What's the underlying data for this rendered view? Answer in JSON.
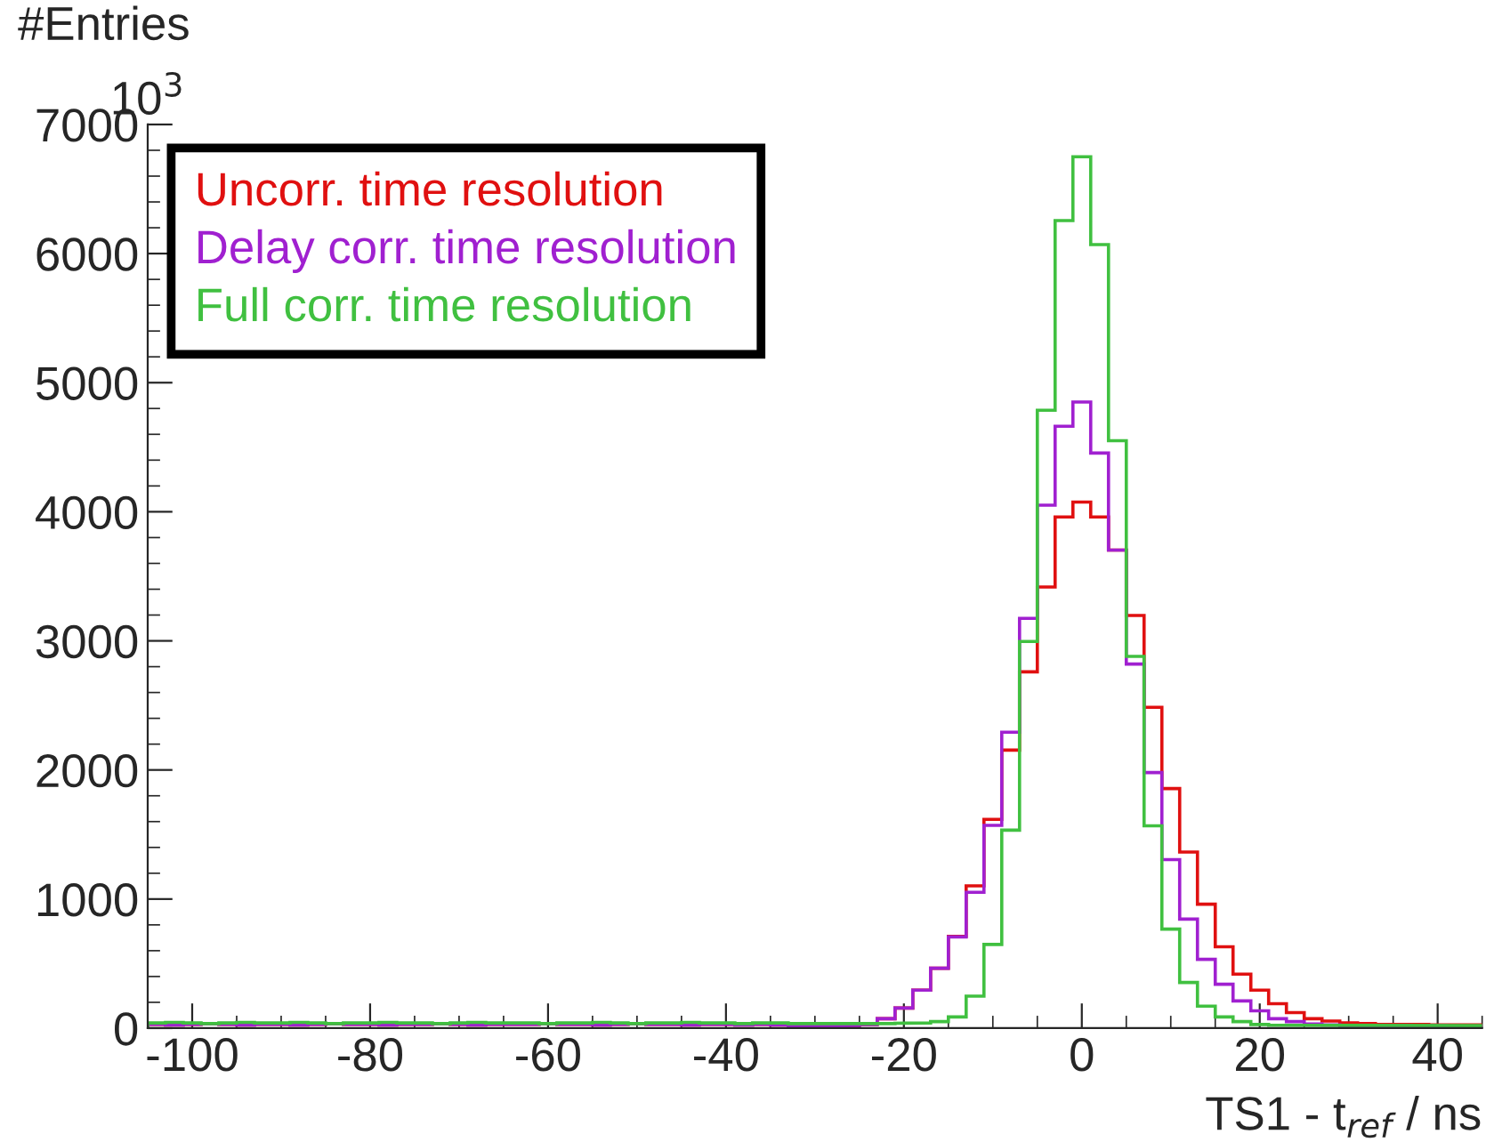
{
  "chart_data": {
    "type": "histogram",
    "xlabel": "TS1 - t$_{ref}$ / ns",
    "ylabel": "#Entries",
    "annotations": [
      "10$^{3}$"
    ],
    "bins": [
      -105,
      -103,
      -101,
      -99,
      -97,
      -95,
      -93,
      -91,
      -89,
      -87,
      -85,
      -83,
      -81,
      -79,
      -77,
      -75,
      -73,
      -71,
      -69,
      -67,
      -65,
      -63,
      -61,
      -59,
      -57,
      -55,
      -53,
      -51,
      -49,
      -47,
      -45,
      -43,
      -41,
      -39,
      -37,
      -35,
      -33,
      -31,
      -29,
      -27,
      -25,
      -23,
      -21,
      -19,
      -17,
      -15,
      -13,
      -11,
      -9,
      -7,
      -5,
      -3,
      -1,
      1,
      3,
      5,
      7,
      9,
      11,
      13,
      15,
      17,
      19,
      21,
      23,
      25,
      27,
      29,
      31,
      33,
      35,
      37,
      39,
      41,
      43,
      45
    ],
    "series": [
      {
        "name": "Uncorr. time resolution",
        "color": "#e01010",
        "values": [
          30,
          25,
          30,
          35,
          30,
          25,
          30,
          30,
          25,
          30,
          35,
          30,
          30,
          25,
          30,
          30,
          35,
          30,
          25,
          30,
          30,
          30,
          35,
          30,
          30,
          25,
          30,
          35,
          30,
          30,
          25,
          30,
          30,
          25,
          30,
          25,
          20,
          15,
          18,
          20,
          28,
          73,
          156,
          294,
          464,
          711,
          1102,
          1617,
          2154,
          2760,
          3417,
          3960,
          4075,
          3960,
          3703,
          3197,
          2485,
          1856,
          1364,
          960,
          630,
          418,
          294,
          189,
          120,
          73,
          55,
          41,
          35,
          30,
          30,
          28,
          25,
          25,
          25
        ]
      },
      {
        "name": "Delay corr. time resolution",
        "color": "#a020d0",
        "values": [
          30,
          25,
          30,
          35,
          30,
          25,
          30,
          30,
          25,
          30,
          35,
          30,
          30,
          25,
          30,
          30,
          35,
          30,
          25,
          30,
          30,
          30,
          35,
          30,
          30,
          25,
          30,
          35,
          30,
          30,
          25,
          30,
          30,
          25,
          30,
          25,
          20,
          15,
          18,
          20,
          28,
          73,
          156,
          294,
          464,
          707,
          1052,
          1571,
          2292,
          3174,
          4051,
          4662,
          4850,
          4455,
          3703,
          2820,
          1980,
          1305,
          845,
          533,
          340,
          211,
          134,
          73,
          51,
          32,
          25,
          20,
          20,
          18,
          20,
          15,
          18,
          15,
          15
        ]
      },
      {
        "name": "Full corr. time resolution",
        "color": "#40c040",
        "values": [
          40,
          45,
          40,
          35,
          40,
          45,
          40,
          40,
          45,
          40,
          35,
          40,
          40,
          45,
          40,
          40,
          35,
          40,
          45,
          40,
          40,
          40,
          35,
          40,
          40,
          45,
          40,
          35,
          40,
          40,
          45,
          40,
          40,
          35,
          40,
          40,
          35,
          35,
          35,
          35,
          35,
          35,
          38,
          40,
          51,
          87,
          248,
          648,
          1534,
          2995,
          4786,
          6256,
          6750,
          6070,
          4550,
          2880,
          1567,
          767,
          354,
          170,
          87,
          51,
          28,
          22,
          20,
          20,
          20,
          20,
          20,
          20,
          20,
          20,
          20,
          20,
          20
        ]
      }
    ],
    "xlim": [
      -105,
      45
    ],
    "xticks": [
      -100,
      -80,
      -60,
      -40,
      -20,
      0,
      20,
      40
    ],
    "ylim": [
      0,
      7000
    ],
    "yticks": [
      0,
      1000,
      2000,
      3000,
      4000,
      5000,
      6000,
      7000
    ],
    "grid": false,
    "legend": "top left"
  }
}
